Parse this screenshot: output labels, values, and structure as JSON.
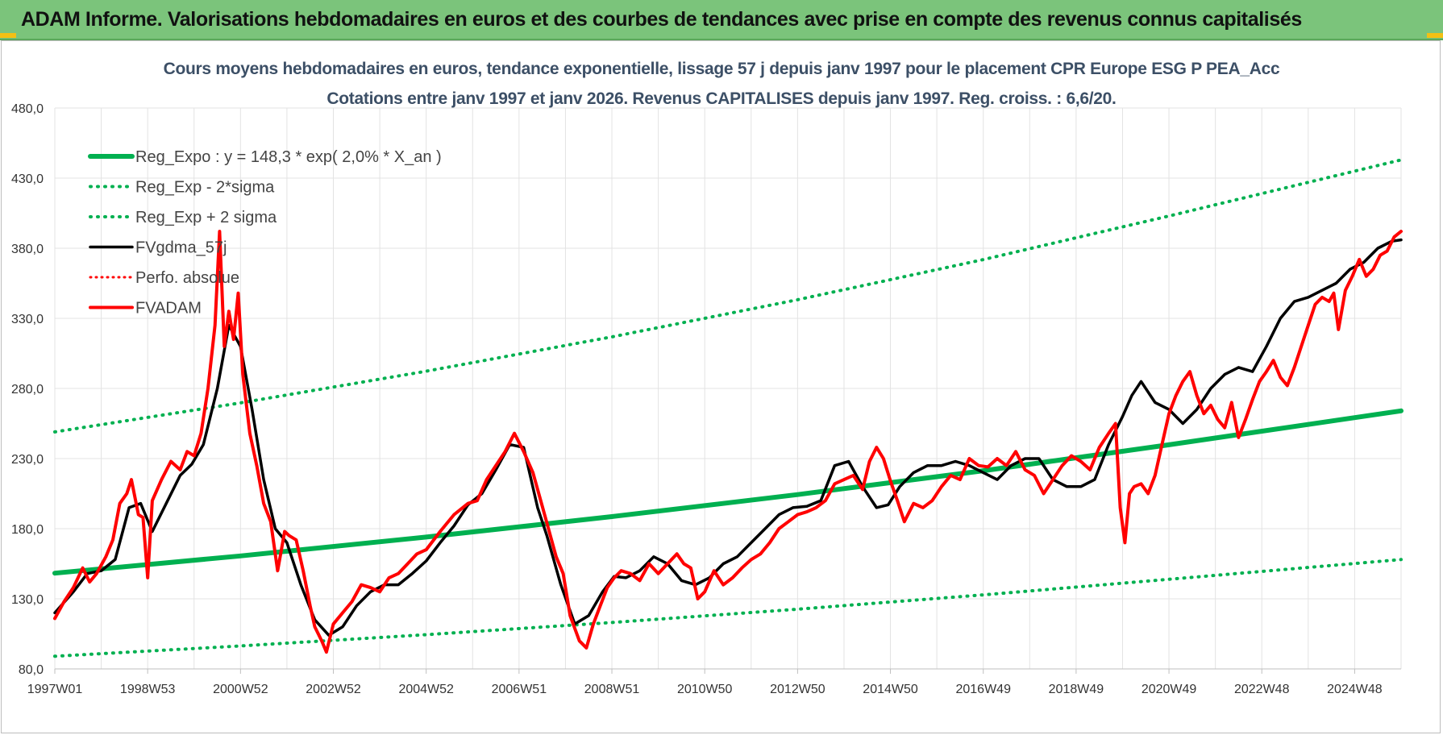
{
  "header": {
    "title": "ADAM Informe. Valorisations hebdomadaires en euros et des courbes de tendances avec prise en compte des revenus connus capitalisés"
  },
  "colors": {
    "banner": "#7bc47b",
    "regression": "#00b050",
    "smoothed": "#000000",
    "price": "#ff0000"
  },
  "chart_data": {
    "type": "line",
    "title": "Cours moyens hebdomadaires en euros, tendance exponentielle, lissage 57 j depuis janv 1997 pour le placement CPR Europe ESG P PEA_Acc",
    "subtitle": "Cotations entre janv 1997 et janv 2026. Revenus CAPITALISES depuis janv 1997. Reg. croiss. : 6,6/20.",
    "xlabel": "",
    "ylabel": "",
    "y_ticks": [
      "80,0",
      "130,0",
      "180,0",
      "230,0",
      "280,0",
      "330,0",
      "380,0",
      "430,0",
      "480,0"
    ],
    "ylim": [
      80,
      480
    ],
    "x_ticks": [
      "1997W01",
      "1998W53",
      "2000W52",
      "2002W52",
      "2004W52",
      "2006W51",
      "2008W51",
      "2010W50",
      "2012W50",
      "2014W50",
      "2016W49",
      "2018W49",
      "2020W49",
      "2022W48",
      "2024W48"
    ],
    "x_tick_years": [
      1997.0,
      1999.0,
      2001.0,
      2003.0,
      2005.0,
      2007.0,
      2009.0,
      2011.0,
      2013.0,
      2015.0,
      2017.0,
      2019.0,
      2021.0,
      2023.0,
      2025.0
    ],
    "xlim": [
      1997.0,
      2026.0
    ],
    "grid": true,
    "legend_position": "top-left",
    "series": [
      {
        "name": "Reg_Expo : y = 148,3 * exp( 2,0% *  X_an )",
        "style": "solid-green-thick",
        "x": [
          1997.0,
          2001.0,
          2005.0,
          2009.0,
          2013.0,
          2017.0,
          2021.0,
          2026.0
        ],
        "y": [
          148.3,
          160.6,
          174.0,
          188.6,
          204.3,
          221.3,
          239.8,
          264.0
        ]
      },
      {
        "name": "Reg_Exp - 2*sigma",
        "style": "dotted-green",
        "x": [
          1997.0,
          2001.0,
          2005.0,
          2009.0,
          2013.0,
          2017.0,
          2021.0,
          2026.0
        ],
        "y": [
          89.0,
          96.4,
          104.4,
          113.1,
          122.6,
          132.8,
          143.9,
          158.0
        ]
      },
      {
        "name": "Reg_Exp + 2 sigma",
        "style": "dotted-green",
        "x": [
          1997.0,
          2001.0,
          2005.0,
          2009.0,
          2013.0,
          2017.0,
          2021.0,
          2026.0
        ],
        "y": [
          249.0,
          269.7,
          292.3,
          316.8,
          343.3,
          371.9,
          403.0,
          443.0
        ]
      },
      {
        "name": "FVgdma_57j",
        "style": "solid-black",
        "x": [
          1997.0,
          1997.4,
          1997.7,
          1998.0,
          1998.3,
          1998.6,
          1998.85,
          1999.1,
          1999.4,
          1999.7,
          1999.95,
          2000.2,
          2000.5,
          2000.75,
          2001.0,
          2001.25,
          2001.5,
          2001.75,
          2002.0,
          2002.3,
          2002.6,
          2002.9,
          2003.2,
          2003.5,
          2003.8,
          2004.1,
          2004.4,
          2004.7,
          2005.0,
          2005.3,
          2005.6,
          2005.9,
          2006.2,
          2006.5,
          2006.8,
          2007.1,
          2007.4,
          2007.6,
          2007.9,
          2008.2,
          2008.5,
          2008.8,
          2009.05,
          2009.3,
          2009.6,
          2009.9,
          2010.2,
          2010.5,
          2010.8,
          2011.1,
          2011.4,
          2011.7,
          2012.0,
          2012.3,
          2012.6,
          2012.9,
          2013.2,
          2013.5,
          2013.8,
          2014.1,
          2014.4,
          2014.7,
          2014.95,
          2015.2,
          2015.5,
          2015.8,
          2016.1,
          2016.4,
          2016.7,
          2017.0,
          2017.3,
          2017.6,
          2017.9,
          2018.2,
          2018.5,
          2018.8,
          2019.1,
          2019.4,
          2019.7,
          2020.0,
          2020.2,
          2020.4,
          2020.7,
          2021.0,
          2021.3,
          2021.6,
          2021.9,
          2022.2,
          2022.5,
          2022.8,
          2023.1,
          2023.4,
          2023.7,
          2024.0,
          2024.3,
          2024.6,
          2024.9,
          2025.2,
          2025.5,
          2025.8,
          2026.0
        ],
        "y": [
          120,
          135,
          148,
          150,
          158,
          195,
          198,
          178,
          198,
          218,
          226,
          240,
          280,
          325,
          310,
          265,
          215,
          180,
          170,
          140,
          115,
          104,
          110,
          125,
          135,
          140,
          140,
          148,
          157,
          170,
          182,
          197,
          205,
          222,
          240,
          238,
          195,
          175,
          140,
          112,
          118,
          135,
          146,
          145,
          150,
          160,
          155,
          143,
          140,
          145,
          155,
          160,
          170,
          180,
          190,
          195,
          196,
          200,
          225,
          228,
          210,
          195,
          197,
          210,
          220,
          225,
          225,
          228,
          225,
          220,
          215,
          225,
          230,
          230,
          215,
          210,
          210,
          215,
          240,
          260,
          275,
          285,
          270,
          265,
          255,
          265,
          280,
          290,
          295,
          292,
          310,
          330,
          342,
          345,
          350,
          355,
          365,
          370,
          380,
          385,
          386
        ]
      },
      {
        "name": "Perfo. absolue",
        "style": "dotted-red",
        "x": [],
        "y": []
      },
      {
        "name": "FVADAM",
        "style": "solid-red-thick",
        "x": [
          1997.0,
          1997.2,
          1997.4,
          1997.6,
          1997.75,
          1997.9,
          1998.1,
          1998.25,
          1998.4,
          1998.55,
          1998.65,
          1998.8,
          1998.9,
          1999.0,
          1999.1,
          1999.3,
          1999.5,
          1999.7,
          1999.85,
          2000.0,
          2000.15,
          2000.3,
          2000.45,
          2000.55,
          2000.65,
          2000.75,
          2000.85,
          2000.95,
          2001.05,
          2001.2,
          2001.35,
          2001.5,
          2001.65,
          2001.8,
          2001.95,
          2002.05,
          2002.2,
          2002.35,
          2002.5,
          2002.6,
          2002.75,
          2002.85,
          2003.0,
          2003.2,
          2003.4,
          2003.6,
          2003.8,
          2004.0,
          2004.2,
          2004.4,
          2004.6,
          2004.8,
          2005.0,
          2005.3,
          2005.6,
          2005.9,
          2006.1,
          2006.3,
          2006.5,
          2006.7,
          2006.9,
          2007.1,
          2007.3,
          2007.5,
          2007.65,
          2007.8,
          2007.95,
          2008.1,
          2008.3,
          2008.45,
          2008.6,
          2008.75,
          2008.9,
          2009.05,
          2009.2,
          2009.4,
          2009.6,
          2009.8,
          2010.0,
          2010.2,
          2010.4,
          2010.55,
          2010.7,
          2010.85,
          2011.0,
          2011.2,
          2011.4,
          2011.6,
          2011.8,
          2012.0,
          2012.2,
          2012.4,
          2012.6,
          2012.8,
          2013.0,
          2013.2,
          2013.4,
          2013.6,
          2013.8,
          2014.0,
          2014.2,
          2014.4,
          2014.55,
          2014.7,
          2014.85,
          2015.0,
          2015.15,
          2015.3,
          2015.5,
          2015.7,
          2015.9,
          2016.1,
          2016.3,
          2016.5,
          2016.7,
          2016.9,
          2017.1,
          2017.3,
          2017.5,
          2017.7,
          2017.9,
          2018.1,
          2018.3,
          2018.5,
          2018.7,
          2018.9,
          2019.1,
          2019.3,
          2019.5,
          2019.7,
          2019.85,
          2019.95,
          2020.05,
          2020.15,
          2020.25,
          2020.4,
          2020.55,
          2020.7,
          2020.85,
          2021.0,
          2021.15,
          2021.3,
          2021.45,
          2021.6,
          2021.75,
          2021.9,
          2022.05,
          2022.2,
          2022.35,
          2022.5,
          2022.65,
          2022.8,
          2022.95,
          2023.1,
          2023.25,
          2023.4,
          2023.55,
          2023.7,
          2023.85,
          2024.0,
          2024.15,
          2024.3,
          2024.45,
          2024.55,
          2024.65,
          2024.8,
          2024.95,
          2025.1,
          2025.25,
          2025.4,
          2025.55,
          2025.7,
          2025.85,
          2026.0
        ],
        "y": [
          116,
          128,
          138,
          152,
          142,
          148,
          160,
          172,
          198,
          205,
          215,
          190,
          188,
          145,
          200,
          215,
          228,
          222,
          235,
          232,
          248,
          280,
          325,
          392,
          310,
          335,
          315,
          348,
          290,
          248,
          225,
          198,
          185,
          150,
          178,
          175,
          172,
          150,
          125,
          110,
          100,
          92,
          112,
          120,
          128,
          140,
          138,
          135,
          145,
          148,
          155,
          162,
          165,
          178,
          190,
          198,
          200,
          215,
          225,
          235,
          248,
          235,
          220,
          196,
          178,
          160,
          148,
          118,
          100,
          95,
          112,
          125,
          138,
          145,
          150,
          148,
          143,
          155,
          148,
          155,
          162,
          155,
          152,
          130,
          135,
          150,
          140,
          145,
          152,
          158,
          162,
          170,
          180,
          185,
          190,
          192,
          195,
          200,
          212,
          215,
          218,
          208,
          228,
          238,
          230,
          214,
          200,
          185,
          198,
          195,
          200,
          210,
          218,
          215,
          230,
          225,
          224,
          230,
          225,
          235,
          222,
          218,
          205,
          215,
          225,
          232,
          228,
          222,
          238,
          248,
          255,
          195,
          170,
          205,
          210,
          212,
          205,
          218,
          240,
          262,
          275,
          285,
          292,
          275,
          262,
          268,
          258,
          252,
          270,
          245,
          258,
          272,
          285,
          292,
          300,
          288,
          282,
          295,
          310,
          325,
          340,
          345,
          342,
          348,
          322,
          350,
          360,
          372,
          360,
          365,
          375,
          378,
          388,
          392
        ]
      }
    ]
  }
}
